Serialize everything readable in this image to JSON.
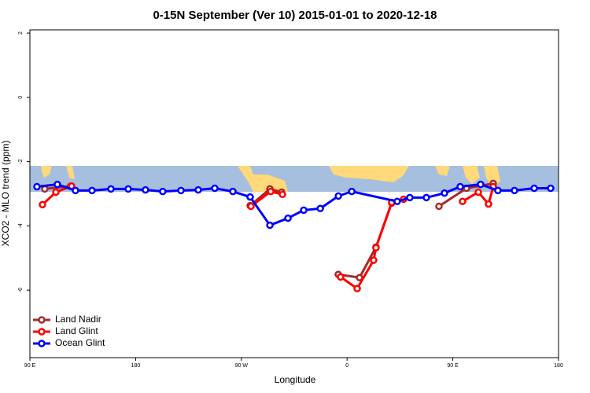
{
  "chart_data": {
    "type": "line",
    "title": "0-15N September (Ver 10)   2015-01-01 to 2020-12-18",
    "x_label": "Longitude",
    "y_label": "XCO2 - MLO trend (ppm)",
    "xlim": [
      90,
      540
    ],
    "xticks": [
      {
        "value": 90,
        "label": "90 E"
      },
      180,
      {
        "value": 270,
        "label": "90 W"
      },
      {
        "value": 360,
        "label": "0"
      },
      {
        "value": 450,
        "label": "90 E"
      },
      {
        "value": 540,
        "label": "180"
      }
    ],
    "ylim": [
      -8.1,
      2.1
    ],
    "yticks": [
      2,
      0,
      -2,
      -4,
      -6
    ],
    "legend": "bottom-left",
    "series": [
      {
        "name": "Land Nadir",
        "color": "#a52a2a",
        "x": [
          102.7,
          124.8,
          null,
          277.5,
          294.3,
          304.3,
          null,
          352.5,
          370.6,
          384.6,
          398,
          null,
          438.2,
          461.7,
          484.4
        ],
        "values": [
          -2.85,
          -2.76,
          null,
          -3.37,
          -2.85,
          -2.95,
          null,
          -5.51,
          -5.61,
          -4.66,
          -3.29,
          null,
          -3.39,
          -2.83,
          -2.68
        ]
      },
      {
        "name": "Land Glint",
        "color": "#ff0000",
        "x": [
          100.7,
          112.1,
          125.5,
          null,
          278.2,
          295,
          305,
          null,
          354.5,
          368.6,
          382.6,
          384.6,
          398,
          408.1,
          null,
          458.3,
          471.7,
          480.4,
          484.4
        ],
        "values": [
          -3.34,
          -2.95,
          -2.76,
          null,
          -3.39,
          -2.93,
          -3.02,
          null,
          -5.59,
          -5.95,
          -5.07,
          -4.68,
          -3.27,
          -3.17,
          null,
          -3.24,
          -2.95,
          -3.32,
          -2.78
        ]
      },
      {
        "name": "Ocean Glint",
        "color": "#0000ff",
        "x": [
          96,
          113.4,
          128.8,
          142.9,
          159,
          173.7,
          188.4,
          203.1,
          218.6,
          233.3,
          247.4,
          262.8,
          277.5,
          294.3,
          309.7,
          323.1,
          337.2,
          352.6,
          364,
          402.7,
          413.4,
          427.5,
          442.9,
          456.3,
          473.7,
          488.4,
          502.5,
          519.3,
          533.3
        ],
        "values": [
          -2.78,
          -2.71,
          -2.9,
          -2.9,
          -2.85,
          -2.85,
          -2.88,
          -2.93,
          -2.9,
          -2.88,
          -2.83,
          -2.93,
          -3.1,
          -3.98,
          -3.76,
          -3.51,
          -3.46,
          -3.07,
          -2.93,
          -3.24,
          -3.12,
          -3.12,
          -2.98,
          -2.78,
          -2.71,
          -2.9,
          -2.9,
          -2.83,
          -2.83
        ]
      }
    ]
  }
}
